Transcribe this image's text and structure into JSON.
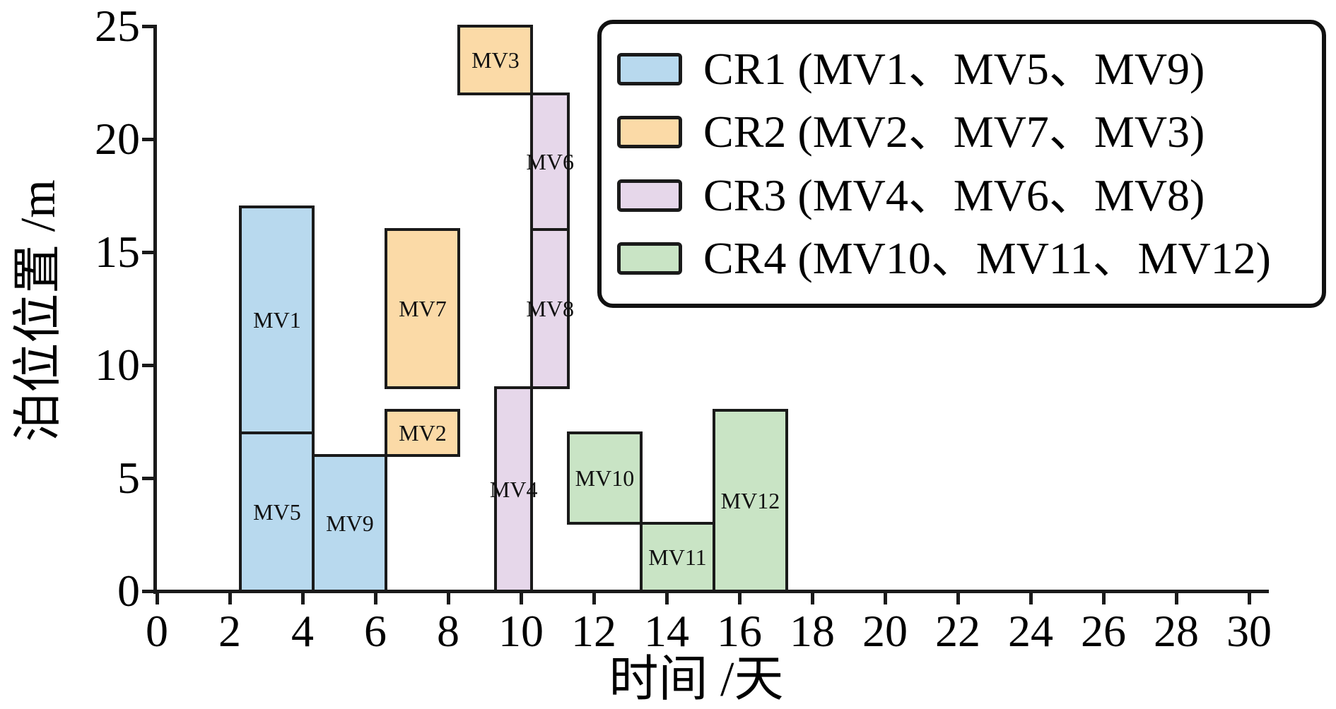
{
  "figure": {
    "xlabel": "时间 /天",
    "ylabel": "泊位位置 /m"
  },
  "chart_data": {
    "type": "rect-schedule-gantt",
    "title": "",
    "xlabel": "时间 /天",
    "ylabel": "泊位位置 /m",
    "xlim": [
      0,
      30.6
    ],
    "ylim": [
      0,
      25
    ],
    "x_ticks": [
      0,
      2,
      4,
      6,
      8,
      10,
      12,
      14,
      16,
      18,
      20,
      22,
      24,
      26,
      28,
      30
    ],
    "y_ticks": [
      0,
      5,
      10,
      15,
      20,
      25
    ],
    "grid": false,
    "bar_border_color": "#1a1a1a",
    "crane_colors": {
      "CR1": "#b8d9ee",
      "CR2": "#fbdaa7",
      "CR3": "#e6d7ea",
      "CR4": "#c9e4c5"
    },
    "legend": {
      "position": "top-right",
      "entries": [
        {
          "crane": "CR1",
          "label": "CR1 (MV1、MV5、MV9)"
        },
        {
          "crane": "CR2",
          "label": "CR2 (MV2、MV7、MV3)"
        },
        {
          "crane": "CR3",
          "label": "CR3 (MV4、MV6、MV8)"
        },
        {
          "crane": "CR4",
          "label": "CR4 (MV10、MV11、MV12)"
        }
      ]
    },
    "bars": [
      {
        "label": "MV1",
        "crane": "CR1",
        "time_start": 2.3,
        "time_end": 4.3,
        "berth_start": 7,
        "berth_end": 17
      },
      {
        "label": "MV5",
        "crane": "CR1",
        "time_start": 2.3,
        "time_end": 4.3,
        "berth_start": 0,
        "berth_end": 7
      },
      {
        "label": "MV9",
        "crane": "CR1",
        "time_start": 4.3,
        "time_end": 6.3,
        "berth_start": 0,
        "berth_end": 6
      },
      {
        "label": "MV7",
        "crane": "CR2",
        "time_start": 6.3,
        "time_end": 8.3,
        "berth_start": 9,
        "berth_end": 16
      },
      {
        "label": "MV2",
        "crane": "CR2",
        "time_start": 6.3,
        "time_end": 8.3,
        "berth_start": 6,
        "berth_end": 8
      },
      {
        "label": "MV3",
        "crane": "CR2",
        "time_start": 8.3,
        "time_end": 10.3,
        "berth_start": 22,
        "berth_end": 25
      },
      {
        "label": "MV4",
        "crane": "CR3",
        "time_start": 9.3,
        "time_end": 10.3,
        "berth_start": 0,
        "berth_end": 9
      },
      {
        "label": "MV6",
        "crane": "CR3",
        "time_start": 10.3,
        "time_end": 11.3,
        "berth_start": 16,
        "berth_end": 22
      },
      {
        "label": "MV8",
        "crane": "CR3",
        "time_start": 10.3,
        "time_end": 11.3,
        "berth_start": 9,
        "berth_end": 16
      },
      {
        "label": "MV10",
        "crane": "CR4",
        "time_start": 11.3,
        "time_end": 13.3,
        "berth_start": 3,
        "berth_end": 7
      },
      {
        "label": "MV11",
        "crane": "CR4",
        "time_start": 13.3,
        "time_end": 15.3,
        "berth_start": 0,
        "berth_end": 3
      },
      {
        "label": "MV12",
        "crane": "CR4",
        "time_start": 15.3,
        "time_end": 17.3,
        "berth_start": 0,
        "berth_end": 8
      }
    ]
  }
}
